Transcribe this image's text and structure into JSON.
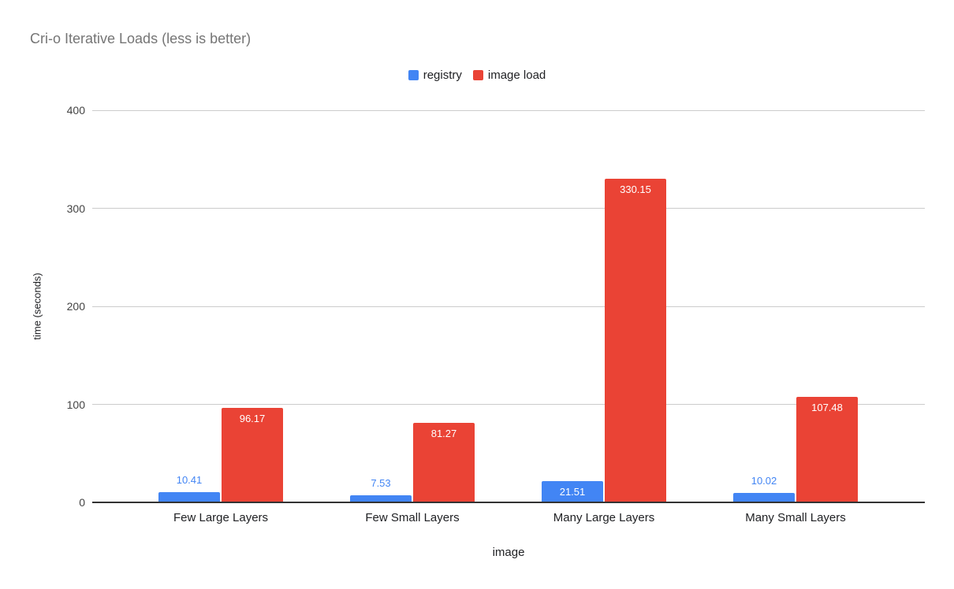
{
  "theme": {
    "background": "#ffffff",
    "title_color": "#757575",
    "legend_text_color": "#202124",
    "axis_title_color": "#202124",
    "tick_label_color": "#444444",
    "category_label_color": "#202124",
    "gridline_color": "#cccccc",
    "axis_line_color": "#333333",
    "value_label_inside_color": "#ffffff"
  },
  "chart_data": {
    "type": "bar",
    "title": "Cri-o Iterative Loads (less is better)",
    "categories": [
      "Few Large Layers",
      "Few Small Layers",
      "Many Large Layers",
      "Many Small Layers"
    ],
    "series": [
      {
        "name": "registry",
        "color": "#4285f4",
        "values": [
          10.41,
          7.53,
          21.51,
          10.02
        ]
      },
      {
        "name": "image load",
        "color": "#ea4335",
        "values": [
          96.17,
          81.27,
          330.15,
          107.48
        ]
      }
    ],
    "xlabel": "image",
    "ylabel": "time (seconds)",
    "ylim": [
      0,
      400
    ],
    "y_ticks": [
      0,
      100,
      200,
      300,
      400
    ],
    "grid": true,
    "legend_position": "top",
    "value_labels": true
  }
}
